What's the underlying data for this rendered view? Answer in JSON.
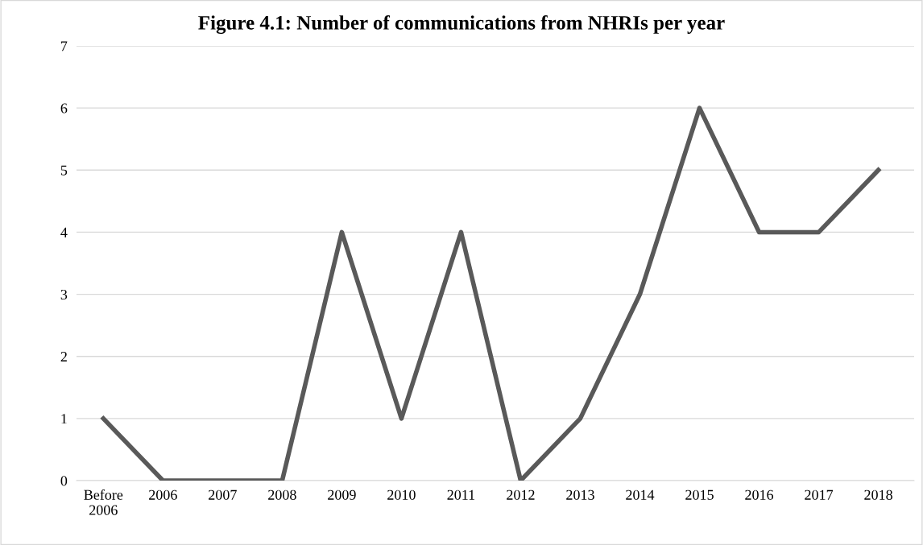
{
  "chart_data": {
    "type": "line",
    "title": "Figure 4.1: Number of communications from NHRIs per year",
    "categories": [
      "Before\n2006",
      "2006",
      "2007",
      "2008",
      "2009",
      "2010",
      "2011",
      "2012",
      "2013",
      "2014",
      "2015",
      "2016",
      "2017",
      "2018"
    ],
    "series": [
      {
        "color": "#595959",
        "values": [
          1,
          0,
          0,
          0,
          4,
          1,
          4,
          0,
          1,
          3,
          6,
          4,
          4,
          5
        ]
      }
    ],
    "ylim": [
      0,
      7
    ],
    "yticks": [
      0,
      1,
      2,
      3,
      4,
      5,
      6,
      7
    ],
    "grid": "y",
    "marker": "none",
    "line_style": "solid",
    "legend": false
  }
}
